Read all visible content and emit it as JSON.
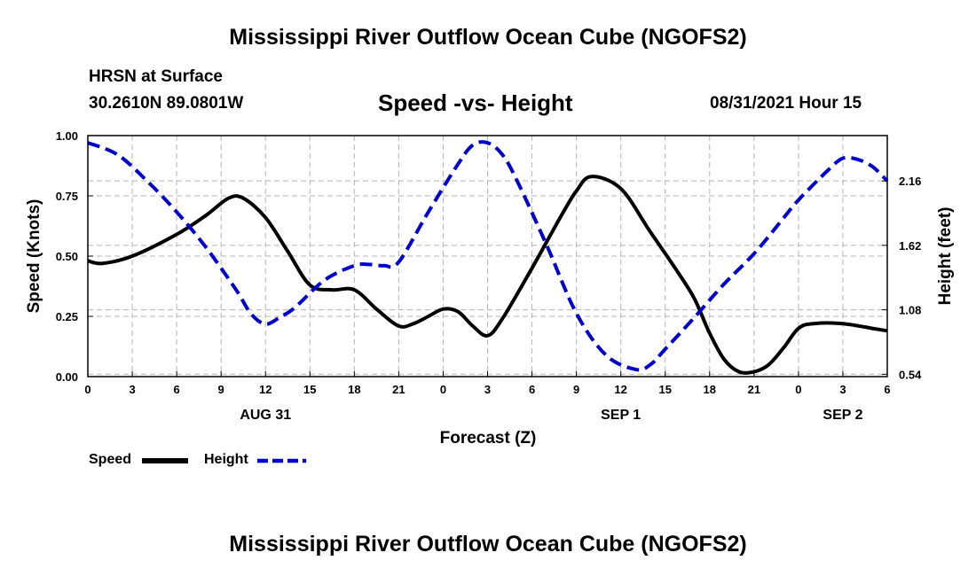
{
  "page": {
    "title_top": "Mississippi River Outflow Ocean Cube (NGOFS2)",
    "title_bottom": "Mississippi River Outflow Ocean Cube (NGOFS2)",
    "station": "HRSN at Surface",
    "coords": "30.2610N  89.0801W",
    "chart_title": "Speed -vs- Height",
    "timestamp": "08/31/2021 Hour 15"
  },
  "colors": {
    "speed": "#000000",
    "height": "#0000cc",
    "grid": "#b4b4b4"
  },
  "chart_data": {
    "type": "line",
    "title": "Speed -vs- Height",
    "xlabel": "Forecast (Z)",
    "ylabel": "Speed (Knots)",
    "y2label": "Height (feet)",
    "x_range_hours": [
      0,
      54
    ],
    "x_ticks": [
      {
        "h": 0,
        "label": "0"
      },
      {
        "h": 3,
        "label": "3"
      },
      {
        "h": 6,
        "label": "6"
      },
      {
        "h": 9,
        "label": "9"
      },
      {
        "h": 12,
        "label": "12"
      },
      {
        "h": 15,
        "label": "15"
      },
      {
        "h": 18,
        "label": "18"
      },
      {
        "h": 21,
        "label": "21"
      },
      {
        "h": 24,
        "label": "0"
      },
      {
        "h": 27,
        "label": "3"
      },
      {
        "h": 30,
        "label": "6"
      },
      {
        "h": 33,
        "label": "9"
      },
      {
        "h": 36,
        "label": "12"
      },
      {
        "h": 39,
        "label": "15"
      },
      {
        "h": 42,
        "label": "18"
      },
      {
        "h": 45,
        "label": "21"
      },
      {
        "h": 48,
        "label": "0"
      },
      {
        "h": 51,
        "label": "3"
      },
      {
        "h": 54,
        "label": "6"
      }
    ],
    "date_labels": [
      {
        "h": 12,
        "label": "AUG 31"
      },
      {
        "h": 36,
        "label": "SEP 1"
      },
      {
        "h": 51,
        "label": "SEP 2"
      }
    ],
    "ylim": [
      0,
      1
    ],
    "y_ticks": [
      {
        "v": 0,
        "label": "0.00"
      },
      {
        "v": 0.25,
        "label": "0.25"
      },
      {
        "v": 0.5,
        "label": "0.50"
      },
      {
        "v": 0.75,
        "label": "0.75"
      },
      {
        "v": 1,
        "label": "1.00"
      }
    ],
    "y2lim": [
      0.52,
      2.54
    ],
    "y2_ticks": [
      {
        "v": 0.54,
        "label": "0.54"
      },
      {
        "v": 1.08,
        "label": "1.08"
      },
      {
        "v": 1.62,
        "label": "1.62"
      },
      {
        "v": 2.16,
        "label": "2.16"
      }
    ],
    "series": [
      {
        "name": "Speed",
        "axis": "left",
        "style": "solid",
        "x": [
          0,
          1,
          3,
          6,
          8,
          9.5,
          10.5,
          12,
          13.5,
          15,
          16.5,
          18,
          19.5,
          21,
          22,
          23,
          24,
          25,
          26,
          27,
          28,
          30,
          32,
          33,
          34,
          36,
          38,
          40,
          41,
          42,
          43,
          44,
          45,
          46,
          47,
          48,
          49,
          51,
          53,
          54
        ],
        "y": [
          0.48,
          0.47,
          0.5,
          0.59,
          0.67,
          0.74,
          0.74,
          0.66,
          0.52,
          0.38,
          0.36,
          0.36,
          0.28,
          0.21,
          0.22,
          0.25,
          0.28,
          0.27,
          0.21,
          0.17,
          0.24,
          0.45,
          0.67,
          0.77,
          0.83,
          0.78,
          0.6,
          0.42,
          0.32,
          0.18,
          0.07,
          0.02,
          0.02,
          0.05,
          0.12,
          0.2,
          0.22,
          0.22,
          0.2,
          0.19
        ]
      },
      {
        "name": "Height",
        "axis": "right",
        "style": "dashed",
        "x": [
          0,
          2,
          4,
          6,
          8,
          10,
          11,
          12,
          13,
          14,
          16,
          18,
          19,
          20,
          21,
          23,
          25,
          26,
          27,
          28,
          29,
          31,
          33,
          35,
          37,
          38,
          39,
          41,
          43,
          45,
          47,
          48,
          50,
          51,
          52,
          53,
          54
        ],
        "y": [
          2.48,
          2.38,
          2.16,
          1.9,
          1.6,
          1.25,
          1.05,
          0.96,
          1.02,
          1.1,
          1.33,
          1.45,
          1.46,
          1.45,
          1.48,
          1.9,
          2.3,
          2.46,
          2.48,
          2.38,
          2.16,
          1.62,
          1.05,
          0.7,
          0.58,
          0.62,
          0.75,
          1.02,
          1.3,
          1.55,
          1.85,
          2.0,
          2.25,
          2.35,
          2.34,
          2.28,
          2.16
        ]
      }
    ],
    "legend": [
      {
        "name": "Speed",
        "style": "solid"
      },
      {
        "name": "Height",
        "style": "dashed"
      }
    ]
  }
}
